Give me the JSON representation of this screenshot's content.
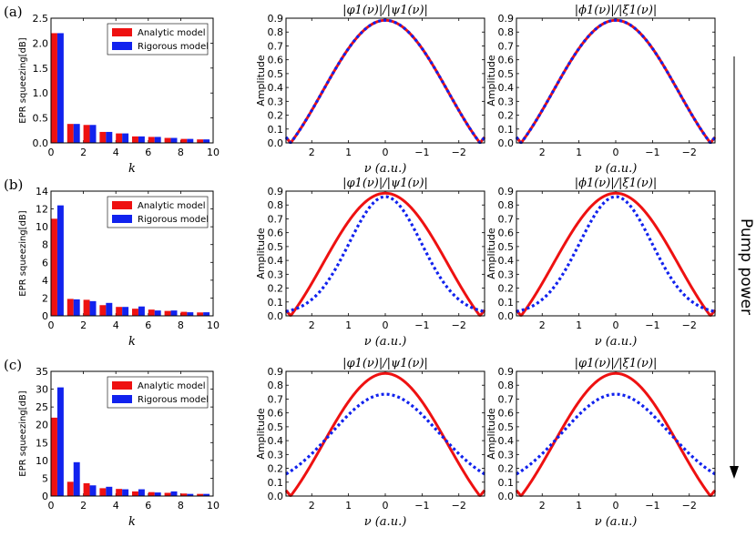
{
  "figure": {
    "pump_label": "Pump power",
    "colors": {
      "analytic": "#ee1111",
      "rigorous": "#1122ee",
      "axis": "#000000"
    }
  },
  "chart_data": [
    {
      "type": "bar",
      "row": 0,
      "panel_label": "(a)",
      "title": "",
      "xlabel": "k",
      "ylabel": "EPR squeezing[dB]",
      "xlim": [
        0,
        10
      ],
      "ylim": [
        0,
        2.5
      ],
      "xticks": [
        "0",
        "2",
        "4",
        "6",
        "8",
        "10"
      ],
      "yticks": [
        "0.0",
        "0.5",
        "1.0",
        "1.5",
        "2.0",
        "2.5"
      ],
      "legend": [
        "Analytic model",
        "Rigorous model"
      ],
      "categories": [
        0,
        1,
        2,
        3,
        4,
        5,
        6,
        7,
        8,
        9
      ],
      "series": [
        {
          "name": "Analytic model",
          "values": [
            2.2,
            0.38,
            0.36,
            0.22,
            0.19,
            0.13,
            0.12,
            0.1,
            0.08,
            0.07
          ]
        },
        {
          "name": "Rigorous model",
          "values": [
            2.2,
            0.38,
            0.36,
            0.22,
            0.19,
            0.13,
            0.12,
            0.1,
            0.08,
            0.07
          ]
        }
      ]
    },
    {
      "type": "line",
      "row": 0,
      "title": "|φ1(ν)|/|ψ1(ν)|",
      "xlabel": "ν (a.u.)",
      "ylabel": "Amplitude",
      "xlim": [
        2.7,
        -2.7
      ],
      "ylim": [
        0,
        0.9
      ],
      "xticks": [
        "2",
        "1",
        "0",
        "−1",
        "−2"
      ],
      "yticks": [
        "0.0",
        "0.1",
        "0.2",
        "0.3",
        "0.4",
        "0.5",
        "0.6",
        "0.7",
        "0.8",
        "0.9"
      ],
      "series": [
        {
          "name": "solid",
          "peak": 0.885,
          "width": 0.82,
          "ring": 1,
          "floor": 0
        },
        {
          "name": "dotted",
          "peak": 0.885,
          "width": 0.82,
          "ring": 1,
          "floor": 0
        }
      ]
    },
    {
      "type": "line",
      "row": 0,
      "title": "|ϕ1(ν)|/|ξ1(ν)|",
      "xlabel": "ν (a.u.)",
      "ylabel": "Amplitude",
      "xlim": [
        2.7,
        -2.7
      ],
      "ylim": [
        0,
        0.9
      ],
      "xticks": [
        "2",
        "1",
        "0",
        "−1",
        "−2"
      ],
      "yticks": [
        "0.0",
        "0.1",
        "0.2",
        "0.3",
        "0.4",
        "0.5",
        "0.6",
        "0.7",
        "0.8",
        "0.9"
      ],
      "series": [
        {
          "name": "solid",
          "peak": 0.885,
          "width": 0.82,
          "ring": 1,
          "floor": 0
        },
        {
          "name": "dotted",
          "peak": 0.885,
          "width": 0.82,
          "ring": 1,
          "floor": 0
        }
      ]
    },
    {
      "type": "bar",
      "row": 1,
      "panel_label": "(b)",
      "title": "",
      "xlabel": "k",
      "ylabel": "EPR squeezing[dB]",
      "xlim": [
        0,
        10
      ],
      "ylim": [
        0,
        14
      ],
      "xticks": [
        "0",
        "2",
        "4",
        "6",
        "8",
        "10"
      ],
      "yticks": [
        "0",
        "2",
        "4",
        "6",
        "8",
        "10",
        "12",
        "14"
      ],
      "legend": [
        "Analytic model",
        "Rigorous model"
      ],
      "categories": [
        0,
        1,
        2,
        3,
        4,
        5,
        6,
        7,
        8,
        9
      ],
      "series": [
        {
          "name": "Analytic model",
          "values": [
            10.9,
            1.9,
            1.8,
            1.2,
            1.0,
            0.8,
            0.7,
            0.55,
            0.45,
            0.38
          ]
        },
        {
          "name": "Rigorous model",
          "values": [
            12.4,
            1.85,
            1.65,
            1.45,
            1.0,
            1.05,
            0.6,
            0.6,
            0.4,
            0.4
          ]
        }
      ]
    },
    {
      "type": "line",
      "row": 1,
      "title": "|φ1(ν)|/|ψ1(ν)|",
      "xlabel": "ν (a.u.)",
      "ylabel": "Amplitude",
      "xlim": [
        2.7,
        -2.7
      ],
      "ylim": [
        0,
        0.9
      ],
      "xticks": [
        "2",
        "1",
        "0",
        "−1",
        "−2"
      ],
      "yticks": [
        "0.0",
        "0.1",
        "0.2",
        "0.3",
        "0.4",
        "0.5",
        "0.6",
        "0.7",
        "0.8",
        "0.9"
      ],
      "series": [
        {
          "name": "solid",
          "peak": 0.885,
          "width": 0.82,
          "ring": 1,
          "floor": 0
        },
        {
          "name": "dotted",
          "peak": 0.86,
          "width": 0.98,
          "ring": 0,
          "floor": 0.012
        }
      ]
    },
    {
      "type": "line",
      "row": 1,
      "title": "|ϕ1(ν)|/|ξ1(ν)|",
      "xlabel": "ν (a.u.)",
      "ylabel": "Amplitude",
      "xlim": [
        2.7,
        -2.7
      ],
      "ylim": [
        0,
        0.9
      ],
      "xticks": [
        "2",
        "1",
        "0",
        "−1",
        "−2"
      ],
      "yticks": [
        "0.0",
        "0.1",
        "0.2",
        "0.3",
        "0.4",
        "0.5",
        "0.6",
        "0.7",
        "0.8",
        "0.9"
      ],
      "series": [
        {
          "name": "solid",
          "peak": 0.885,
          "width": 0.82,
          "ring": 1,
          "floor": 0
        },
        {
          "name": "dotted",
          "peak": 0.86,
          "width": 0.98,
          "ring": 0,
          "floor": 0.012
        }
      ]
    },
    {
      "type": "bar",
      "row": 2,
      "panel_label": "(c)",
      "title": "",
      "xlabel": "k",
      "ylabel": "EPR squeezing[dB]",
      "xlim": [
        0,
        10
      ],
      "ylim": [
        0,
        35
      ],
      "xticks": [
        "0",
        "2",
        "4",
        "6",
        "8",
        "10"
      ],
      "yticks": [
        "0",
        "5",
        "10",
        "15",
        "20",
        "25",
        "30",
        "35"
      ],
      "legend": [
        "Analytic model",
        "Rigorous model"
      ],
      "categories": [
        0,
        1,
        2,
        3,
        4,
        5,
        6,
        7,
        8,
        9
      ],
      "series": [
        {
          "name": "Analytic model",
          "values": [
            22,
            4.0,
            3.6,
            2.2,
            2.0,
            1.3,
            1.1,
            0.9,
            0.7,
            0.6
          ]
        },
        {
          "name": "Rigorous model",
          "values": [
            30.5,
            9.5,
            3.0,
            2.6,
            1.9,
            1.9,
            1.0,
            1.3,
            0.6,
            0.6
          ]
        }
      ]
    },
    {
      "type": "line",
      "row": 2,
      "title": "|φ1(ν)|/|ψ1(ν)|",
      "xlabel": "ν (a.u.)",
      "ylabel": "Amplitude",
      "xlim": [
        2.7,
        -2.7
      ],
      "ylim": [
        0,
        0.9
      ],
      "xticks": [
        "2",
        "1",
        "0",
        "−1",
        "−2"
      ],
      "yticks": [
        "0.0",
        "0.1",
        "0.2",
        "0.3",
        "0.4",
        "0.5",
        "0.6",
        "0.7",
        "0.8",
        "0.9"
      ],
      "series": [
        {
          "name": "solid",
          "peak": 0.885,
          "width": 0.82,
          "ring": 1,
          "floor": 0
        },
        {
          "name": "dotted",
          "peak": 0.735,
          "width": 1.45,
          "ring": 0,
          "floor": 0.035
        }
      ]
    },
    {
      "type": "line",
      "row": 2,
      "title": "|φ1(ν)|/|ξ1(ν)|",
      "xlabel": "ν (a.u.)",
      "ylabel": "Amplitude",
      "xlim": [
        2.7,
        -2.7
      ],
      "ylim": [
        0,
        0.9
      ],
      "xticks": [
        "2",
        "1",
        "0",
        "−1",
        "−2"
      ],
      "yticks": [
        "0.0",
        "0.1",
        "0.2",
        "0.3",
        "0.4",
        "0.5",
        "0.6",
        "0.7",
        "0.8",
        "0.9"
      ],
      "series": [
        {
          "name": "solid",
          "peak": 0.885,
          "width": 0.82,
          "ring": 1,
          "floor": 0
        },
        {
          "name": "dotted",
          "peak": 0.735,
          "width": 1.45,
          "ring": 0,
          "floor": 0.035
        }
      ]
    }
  ]
}
